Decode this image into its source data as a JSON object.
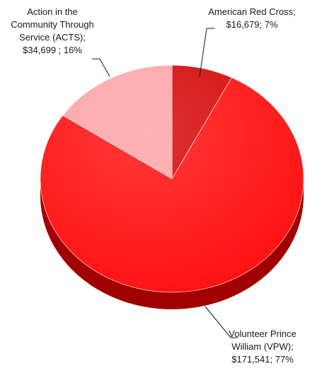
{
  "chart_data": {
    "type": "pie",
    "title": "",
    "slices": [
      {
        "category": "American Red Cross",
        "value": 16679,
        "percent": 7,
        "label_lines": [
          "American Red Cross;",
          "$16,679; 7%"
        ],
        "color": "#d40606",
        "side_color": "#8a0000"
      },
      {
        "category": "Volunteer Prince William (VPW)",
        "value": 171541,
        "percent": 77,
        "label_lines": [
          "Volunteer Prince",
          "William (VPW);",
          "$171,541; 77%"
        ],
        "color": "#ff0e0e",
        "side_color": "#a00000"
      },
      {
        "category": "Action in the Community Through Service (ACTS)",
        "value": 34699,
        "percent": 16,
        "label_lines": [
          "Action in the",
          "Community Through",
          "Service (ACTS);",
          "$34,699 ; 16%"
        ],
        "color": "#ffa3a6",
        "side_color": "#cc7a7d"
      }
    ]
  }
}
